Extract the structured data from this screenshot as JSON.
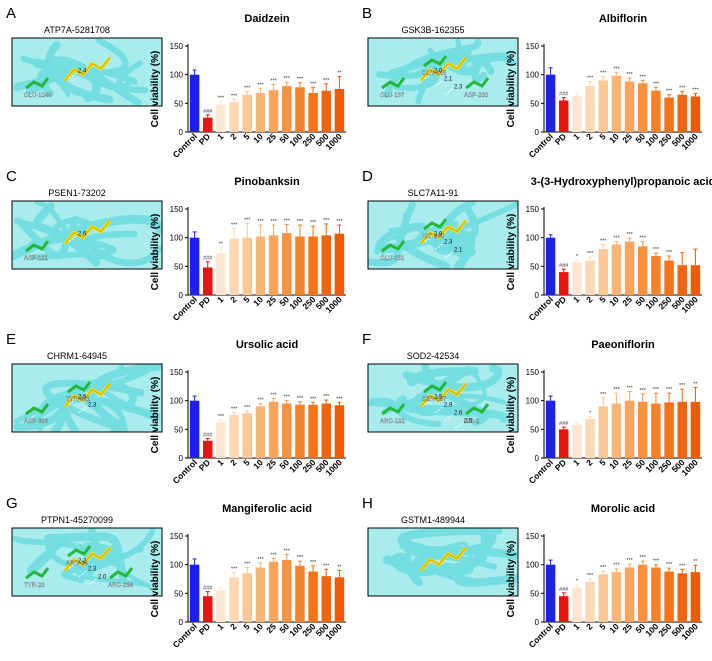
{
  "colors": {
    "control": "#1f1ff2",
    "pd": "#ee1111",
    "gradient": [
      "#fde6d0",
      "#fcd7b4",
      "#fbc795",
      "#f9b577",
      "#f8a45c",
      "#f69242",
      "#f5812d",
      "#f3721c",
      "#f2650f",
      "#f15a05"
    ],
    "structure_bg": "#73dde0",
    "ligand": "#f2e01c",
    "residue": "#23b83a"
  },
  "y_axis_label": "Cell viability (%)",
  "x_categories": [
    "Control",
    "PD",
    "1",
    "2",
    "5",
    "10",
    "25",
    "50",
    "100",
    "250",
    "500",
    "1000"
  ],
  "chart_data": [
    {
      "type": "bar",
      "panel": "A",
      "title": "Daidzein",
      "structure_label": "ATP7A-5281708",
      "residues": [
        {
          "name": "GLU-1048"
        }
      ],
      "distances": [
        "2.4"
      ],
      "ylabel": "Cell viability (%)",
      "ylim": [
        0,
        150
      ],
      "yticks": [
        0,
        50,
        100,
        150
      ],
      "categories": [
        "Control",
        "PD",
        "1",
        "2",
        "5",
        "10",
        "25",
        "50",
        "100",
        "250",
        "500",
        "1000"
      ],
      "values": [
        100,
        25,
        48,
        52,
        65,
        68,
        73,
        80,
        78,
        68,
        72,
        75
      ],
      "errors": [
        8,
        5,
        5,
        5,
        6,
        8,
        10,
        7,
        8,
        10,
        12,
        22
      ],
      "sig": [
        "",
        "###",
        "***",
        "***",
        "***",
        "***",
        "***",
        "***",
        "***",
        "***",
        "***",
        "**"
      ]
    },
    {
      "type": "bar",
      "panel": "B",
      "title": "Albiflorin",
      "structure_label": "GSK3B-162355",
      "residues": [
        {
          "name": "GLU-137"
        },
        {
          "name": "GLN-185"
        },
        {
          "name": "ASP-200"
        }
      ],
      "distances": [
        "2.0",
        "2.1",
        "2.3"
      ],
      "ylabel": "Cell viability (%)",
      "ylim": [
        0,
        150
      ],
      "yticks": [
        0,
        50,
        100,
        150
      ],
      "categories": [
        "Control",
        "PD",
        "1",
        "2",
        "5",
        "10",
        "25",
        "50",
        "100",
        "250",
        "500",
        "1000"
      ],
      "values": [
        100,
        55,
        63,
        80,
        90,
        98,
        88,
        85,
        72,
        60,
        65,
        62
      ],
      "errors": [
        12,
        5,
        6,
        8,
        7,
        6,
        6,
        5,
        6,
        5,
        6,
        5
      ],
      "sig": [
        "",
        "###",
        "",
        "***",
        "***",
        "***",
        "***",
        "***",
        "***",
        "***",
        "***",
        "***"
      ]
    },
    {
      "type": "bar",
      "panel": "C",
      "title": "Pinobanksin",
      "structure_label": "PSEN1-73202",
      "residues": [
        {
          "name": "ASP-121"
        }
      ],
      "distances": [
        "2.6"
      ],
      "ylabel": "Cell viability (%)",
      "ylim": [
        0,
        150
      ],
      "yticks": [
        0,
        50,
        100,
        150
      ],
      "categories": [
        "Control",
        "PD",
        "1",
        "2",
        "5",
        "10",
        "25",
        "50",
        "100",
        "250",
        "500",
        "1000"
      ],
      "values": [
        100,
        48,
        73,
        98,
        100,
        102,
        104,
        108,
        102,
        102,
        104,
        107
      ],
      "errors": [
        10,
        10,
        10,
        18,
        25,
        20,
        18,
        15,
        20,
        18,
        20,
        15
      ],
      "sig": [
        "",
        "###",
        "**",
        "***",
        "***",
        "***",
        "***",
        "***",
        "***",
        "***",
        "***",
        "***"
      ]
    },
    {
      "type": "bar",
      "panel": "D",
      "title": "3-(3-Hydroxyphenyl)propanoic acid",
      "structure_label": "SLC7A11-91",
      "residues": [
        {
          "name": "GLU-151"
        },
        {
          "name": "HIS-230"
        }
      ],
      "distances": [
        "2.9",
        "2.3",
        "2.1"
      ],
      "ylabel": "Cell viability (%)",
      "ylim": [
        0,
        150
      ],
      "yticks": [
        0,
        50,
        100,
        150
      ],
      "categories": [
        "Control",
        "PD",
        "1",
        "2",
        "5",
        "10",
        "25",
        "50",
        "100",
        "250",
        "500",
        "1000"
      ],
      "values": [
        100,
        40,
        57,
        60,
        80,
        88,
        93,
        85,
        68,
        60,
        52,
        52
      ],
      "errors": [
        5,
        5,
        4,
        6,
        8,
        5,
        6,
        8,
        5,
        8,
        22,
        28
      ],
      "sig": [
        "",
        "###",
        "*",
        "***",
        "***",
        "***",
        "***",
        "***",
        "***",
        "***",
        "",
        ""
      ]
    },
    {
      "type": "bar",
      "panel": "E",
      "title": "Ursolic acid",
      "structure_label": "CHRM1-64945",
      "residues": [
        {
          "name": "ASP-393"
        },
        {
          "name": "TYR-381"
        }
      ],
      "distances": [
        "2.5",
        "2.3"
      ],
      "ylabel": "Cell viability (%)",
      "ylim": [
        0,
        150
      ],
      "yticks": [
        0,
        50,
        100,
        150
      ],
      "categories": [
        "Control",
        "PD",
        "1",
        "2",
        "5",
        "10",
        "25",
        "50",
        "100",
        "250",
        "500",
        "1000"
      ],
      "values": [
        100,
        30,
        62,
        75,
        78,
        90,
        98,
        95,
        93,
        93,
        95,
        92
      ],
      "errors": [
        8,
        4,
        4,
        4,
        4,
        5,
        6,
        5,
        5,
        4,
        6,
        5
      ],
      "sig": [
        "",
        "###",
        "***",
        "***",
        "***",
        "***",
        "***",
        "***",
        "***",
        "***",
        "***",
        "***"
      ]
    },
    {
      "type": "bar",
      "panel": "F",
      "title": "Paeoniflorin",
      "structure_label": "SOD2-42534",
      "residues": [
        {
          "name": "ARG-192"
        },
        {
          "name": "SER-197"
        },
        {
          "name": "HIS-2"
        }
      ],
      "distances": [
        "2.5",
        "2.9",
        "2.6",
        "2.5"
      ],
      "ylabel": "Cell viability (%)",
      "ylim": [
        0,
        150
      ],
      "yticks": [
        0,
        50,
        100,
        150
      ],
      "categories": [
        "Control",
        "PD",
        "1",
        "2",
        "5",
        "10",
        "25",
        "50",
        "100",
        "250",
        "500",
        "1000"
      ],
      "values": [
        100,
        50,
        58,
        68,
        90,
        95,
        100,
        98,
        95,
        97,
        98,
        98
      ],
      "errors": [
        8,
        4,
        4,
        4,
        15,
        18,
        16,
        14,
        18,
        16,
        22,
        25
      ],
      "sig": [
        "",
        "###",
        "",
        "*",
        "***",
        "***",
        "***",
        "***",
        "***",
        "***",
        "***",
        "**"
      ]
    },
    {
      "type": "bar",
      "panel": "G",
      "title": "Mangiferolic acid",
      "structure_label": "PTPN1-45270099",
      "residues": [
        {
          "name": "TYR-20"
        },
        {
          "name": "ARG-24"
        },
        {
          "name": "ARG-254"
        }
      ],
      "distances": [
        "2.2",
        "2.3",
        "2.0"
      ],
      "ylabel": "Cell viability (%)",
      "ylim": [
        0,
        150
      ],
      "yticks": [
        0,
        50,
        100,
        150
      ],
      "categories": [
        "Control",
        "PD",
        "1",
        "2",
        "5",
        "10",
        "25",
        "50",
        "100",
        "250",
        "500",
        "1000"
      ],
      "values": [
        100,
        45,
        55,
        78,
        85,
        95,
        105,
        108,
        98,
        88,
        80,
        78
      ],
      "errors": [
        10,
        8,
        4,
        8,
        10,
        8,
        6,
        10,
        8,
        10,
        12,
        12
      ],
      "sig": [
        "",
        "###",
        "",
        "***",
        "***",
        "***",
        "***",
        "***",
        "***",
        "***",
        "***",
        "**"
      ]
    },
    {
      "type": "bar",
      "panel": "H",
      "title": "Morolic acid",
      "structure_label": "GSTM1-489944",
      "residues": [],
      "distances": [],
      "ylabel": "Cell viability (%)",
      "ylim": [
        0,
        150
      ],
      "yticks": [
        0,
        50,
        100,
        150
      ],
      "categories": [
        "Control",
        "PD",
        "1",
        "2",
        "5",
        "10",
        "25",
        "50",
        "100",
        "250",
        "500",
        "1000"
      ],
      "values": [
        100,
        45,
        60,
        70,
        83,
        87,
        95,
        100,
        95,
        88,
        85,
        87
      ],
      "errors": [
        8,
        6,
        5,
        5,
        6,
        6,
        6,
        6,
        5,
        6,
        7,
        12
      ],
      "sig": [
        "",
        "###",
        "*",
        "***",
        "***",
        "***",
        "***",
        "***",
        "***",
        "***",
        "***",
        "**"
      ]
    }
  ]
}
